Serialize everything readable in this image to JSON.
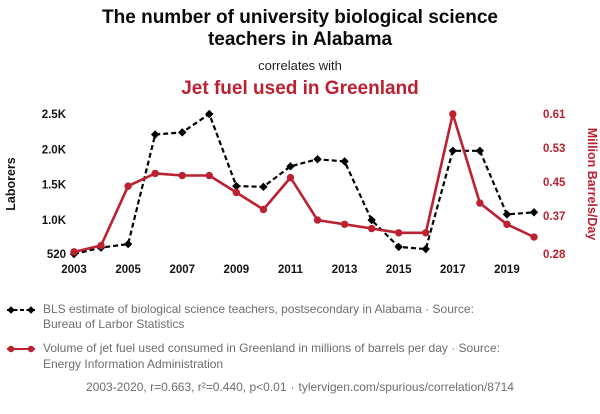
{
  "colors": {
    "accent": "#bc2132",
    "series_black": "#000000",
    "muted_text": "#6e6e6e"
  },
  "header": {
    "title": "The number of university biological science teachers in Alabama",
    "connector": "correlates with",
    "correlate_title": "Jet fuel used in Greenland"
  },
  "chart_data": {
    "type": "line",
    "x": [
      2003,
      2004,
      2005,
      2006,
      2007,
      2008,
      2009,
      2010,
      2011,
      2012,
      2013,
      2014,
      2015,
      2016,
      2017,
      2018,
      2019,
      2020
    ],
    "x_tick_values": [
      2003,
      2005,
      2007,
      2009,
      2011,
      2013,
      2015,
      2017,
      2019
    ],
    "x_tick_labels": [
      "2003",
      "2005",
      "2007",
      "2009",
      "2011",
      "2013",
      "2015",
      "2017",
      "2019"
    ],
    "left_axis": {
      "label": "Laborers",
      "min": 520,
      "max": 2500,
      "tick_values": [
        520,
        1000,
        1500,
        2000,
        2500
      ],
      "tick_labels": [
        "520",
        "1.0K",
        "1.5K",
        "2.0K",
        "2.5K"
      ]
    },
    "right_axis": {
      "label": "Million Barrels/Day",
      "min": 0.28,
      "max": 0.61,
      "tick_values": [
        0.28,
        0.37,
        0.45,
        0.53,
        0.61
      ],
      "tick_labels": [
        "0.28",
        "0.37",
        "0.45",
        "0.53",
        "0.61"
      ]
    },
    "series": [
      {
        "id": "teachers",
        "name": "BLS estimate of biological science teachers, postsecondary in Alabama",
        "axis": "left",
        "color": "#000000",
        "line_style": "dashed",
        "marker": "diamond",
        "values": [
          520,
          610,
          660,
          2210,
          2240,
          2500,
          1480,
          1470,
          1760,
          1860,
          1830,
          1000,
          620,
          590,
          1980,
          1980,
          1080,
          1110
        ]
      },
      {
        "id": "jetfuel",
        "name": "Volume of jet fuel used consumed in Greenland",
        "axis": "right",
        "color": "#bc2132",
        "line_style": "solid",
        "marker": "circle",
        "values": [
          0.285,
          0.3,
          0.44,
          0.47,
          0.465,
          0.465,
          0.425,
          0.385,
          0.46,
          0.36,
          0.35,
          0.34,
          0.33,
          0.33,
          0.61,
          0.4,
          0.35,
          0.32
        ]
      }
    ]
  },
  "legend": [
    {
      "label": "BLS estimate of biological science teachers, postsecondary in Alabama · Source: Bureau of Larbor Statistics"
    },
    {
      "label": "Volume of jet fuel used consumed in Greenland in millions of barrels per day · Source: Energy Information Administration"
    }
  ],
  "footer": {
    "stats": "2003-2020, r=0.663, r²=0.440, p<0.01",
    "separator": "·",
    "link": "tylervigen.com/spurious/correlation/8714"
  }
}
